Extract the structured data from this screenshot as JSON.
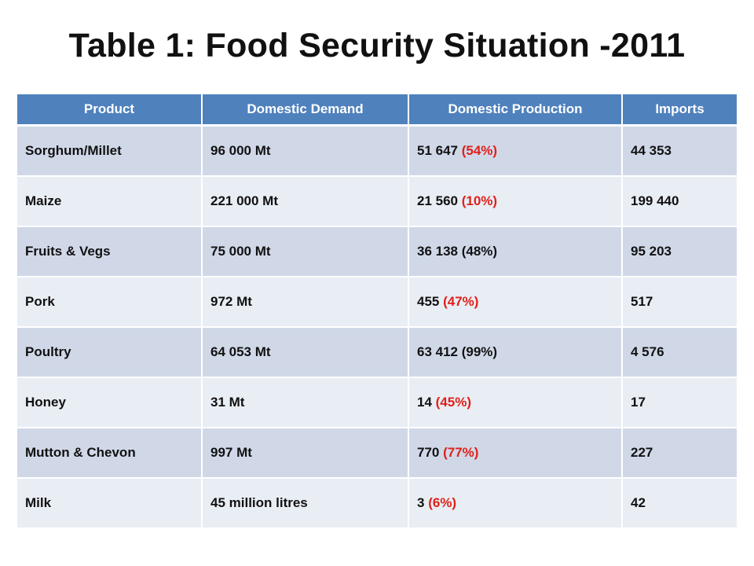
{
  "title": "Table 1: Food Security Situation -2011",
  "colors": {
    "header_bg": "#4f81bd",
    "row_odd": "#d0d8e8",
    "row_even": "#e9edf4",
    "percent_text": "#e0201a"
  },
  "table": {
    "headers": [
      "Product",
      "Domestic Demand",
      "Domestic Production",
      "Imports"
    ],
    "rows": [
      {
        "product": "Sorghum/Millet",
        "demand": "96 000 Mt",
        "production": "51 647 ",
        "percent": "(54%)",
        "imports": "44 353"
      },
      {
        "product": "Maize",
        "demand": "221 000 Mt",
        "production": "21 560",
        "percent": "(10%)",
        "imports": "199 440"
      },
      {
        "product": "Fruits & Vegs",
        "demand": "75 000 Mt",
        "production": "36 138 (48%)",
        "percent": "",
        "imports": "95 203"
      },
      {
        "product": "Pork",
        "demand": "972 Mt",
        "production": "455 ",
        "percent": "(47%)",
        "imports": "517"
      },
      {
        "product": "Poultry",
        "demand": "64 053 Mt",
        "production": "63 412 (99%)",
        "percent": "",
        "imports": "4 576"
      },
      {
        "product": "Honey",
        "demand": "31 Mt",
        "production": "14 ",
        "percent": "(45%)",
        "imports": "17"
      },
      {
        "product": "Mutton & Chevon",
        "demand": "997 Mt",
        "production": "770 ",
        "percent": "(77%)",
        "imports": "227"
      },
      {
        "product": "Milk",
        "demand": "45 million litres",
        "production": "3",
        "percent": "(6%)",
        "imports": "42"
      }
    ]
  }
}
